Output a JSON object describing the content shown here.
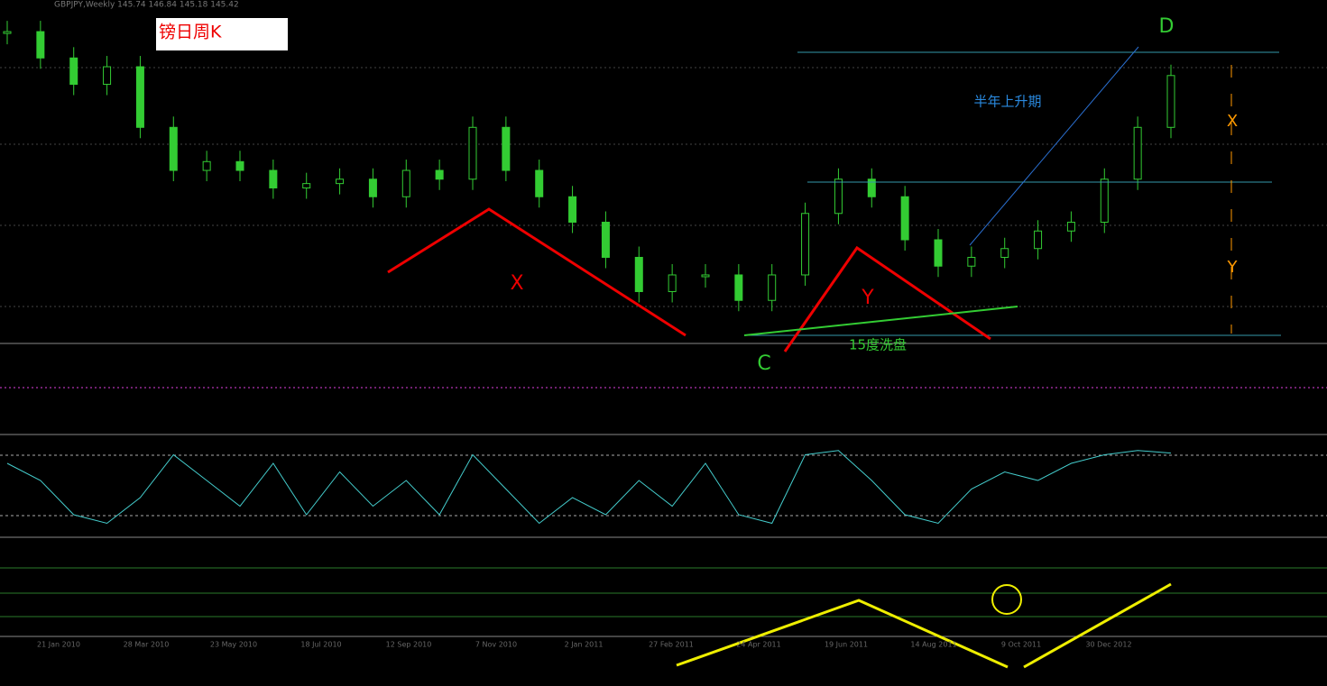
{
  "header": "GBPJPY,Weekly 145.74 146.84 145.18 145.42",
  "title": "镑日周K",
  "annotations": {
    "d": "D",
    "rise": "半年上升期",
    "x_right": "X",
    "y_right": "Y",
    "x_left": "X",
    "y_mid": "Y",
    "c": "C",
    "wash": "15度洗盘"
  },
  "price": {
    "ylim": [
      113,
      152
    ],
    "close": [
      148.4,
      145.4,
      142.4,
      144.4,
      137.5,
      132.6,
      133.6,
      132.6,
      130.6,
      131.1,
      131.6,
      129.6,
      132.6,
      131.6,
      137.5,
      132.6,
      129.6,
      126.7,
      122.7,
      118.8,
      120.7,
      120.7,
      117.8,
      120.7,
      127.7,
      131.6,
      129.6,
      124.7,
      121.7,
      122.7,
      123.7,
      125.7,
      126.7,
      131.6,
      137.5,
      143.4
    ]
  },
  "oscillator": {
    "ylim": [
      0,
      100
    ],
    "values": [
      80,
      60,
      20,
      10,
      40,
      90,
      60,
      30,
      80,
      20,
      70,
      30,
      60,
      20,
      90,
      50,
      10,
      40,
      20,
      60,
      30,
      80,
      20,
      10,
      90,
      95,
      60,
      20,
      10,
      50,
      70,
      60,
      80,
      90,
      95,
      92
    ]
  },
  "dates": [
    "21 Jan 2010",
    "28 Mar 2010",
    "23 May 2010",
    "18 Jul 2010",
    "12 Sep 2010",
    "7 Nov 2010",
    "2 Jan 2011",
    "27 Feb 2011",
    "24 Apr 2011",
    "19 Jun 2011",
    "14 Aug 2011",
    "9 Oct 2011",
    "30 Dec 2012"
  ]
}
